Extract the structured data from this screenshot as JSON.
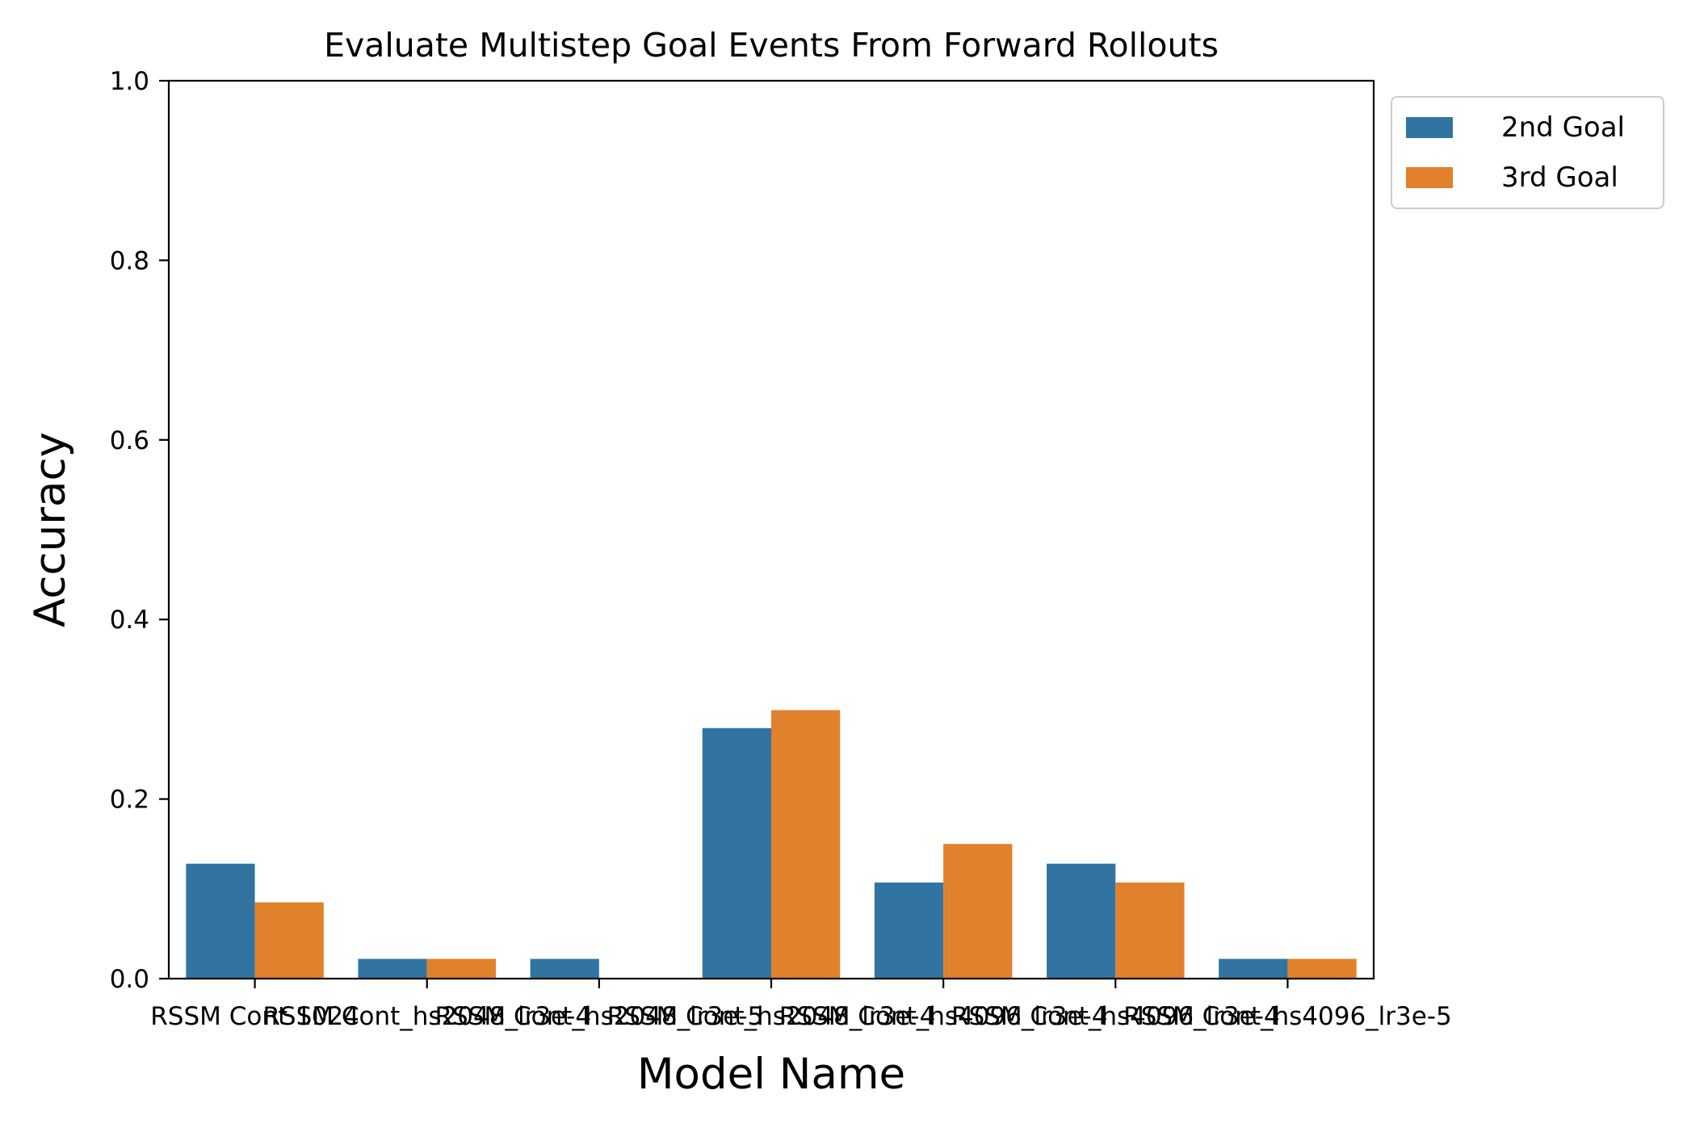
{
  "chart_data": {
    "type": "bar",
    "title": "Evaluate Multistep Goal Events From Forward Rollouts",
    "xlabel": "Model Name",
    "ylabel": "Accuracy",
    "ylim": [
      0,
      1.0
    ],
    "yticks": [
      "0.0",
      "0.2",
      "0.4",
      "0.6",
      "0.8",
      "1.0"
    ],
    "categories": [
      "RSSM Cont 1024",
      "RSSM Cont_hs2048_lr3e-4",
      "RSSM Cont_hs2048_lr3e-5",
      "RSSM Cont_hs2048_lr3e-4",
      "RSSM Cont_hs4096_lr3e-4",
      "RSSM Cont_hs4096_lr3e-4",
      "RSSM Cont_hs4096_lr3e-5"
    ],
    "series": [
      {
        "name": "2nd Goal",
        "color": "#3274a1",
        "values": [
          0.128,
          0.022,
          0.022,
          0.279,
          0.107,
          0.128,
          0.022
        ]
      },
      {
        "name": "3rd Goal",
        "color": "#e1812c",
        "values": [
          0.085,
          0.022,
          0.0,
          0.299,
          0.15,
          0.107,
          0.022
        ]
      }
    ],
    "grid": false,
    "legend_position": "outside top-right"
  }
}
